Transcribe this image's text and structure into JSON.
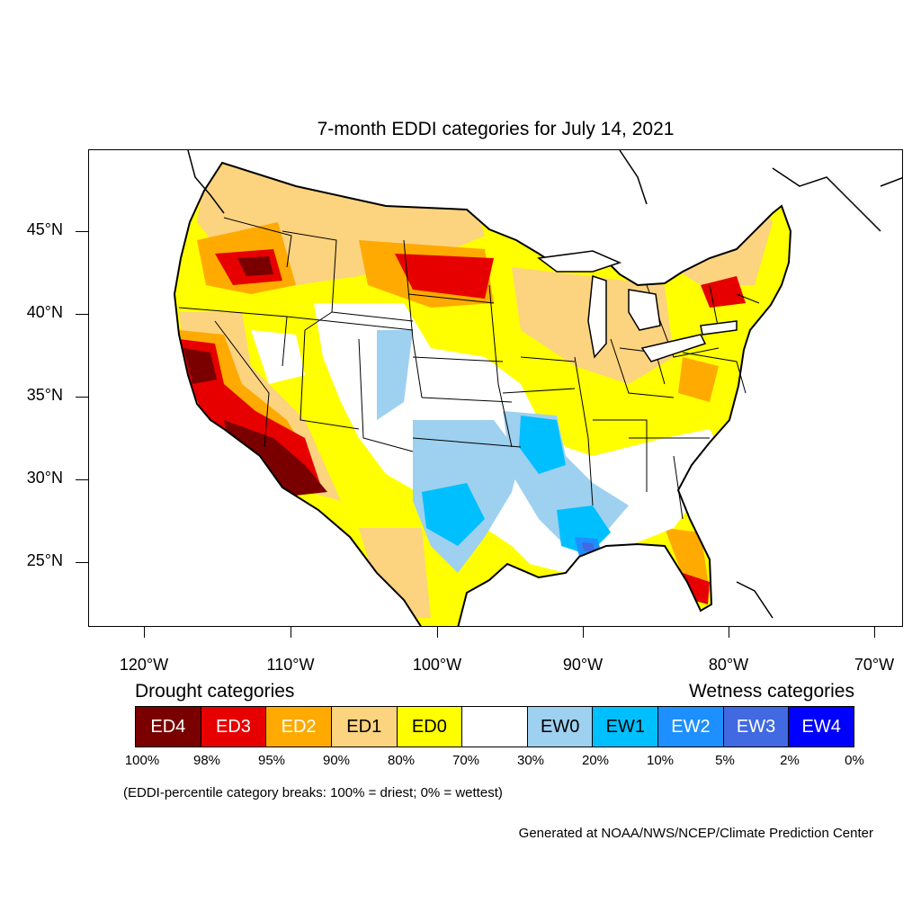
{
  "title": "7-month EDDI categories for July 14, 2021",
  "latitude_labels": [
    "45°N",
    "40°N",
    "35°N",
    "30°N",
    "25°N"
  ],
  "longitude_labels": [
    "120°W",
    "110°W",
    "100°W",
    "90°W",
    "80°W",
    "70°W"
  ],
  "legend": {
    "drought_heading": "Drought categories",
    "wetness_heading": "Wetness categories",
    "categories": [
      {
        "label": "ED4",
        "color": "#7a0000",
        "text_color": "#ffffff"
      },
      {
        "label": "ED3",
        "color": "#e60000",
        "text_color": "#ffffff"
      },
      {
        "label": "ED2",
        "color": "#ffaa00",
        "text_color": "#ffffff"
      },
      {
        "label": "ED1",
        "color": "#fcd37f",
        "text_color": "#000000"
      },
      {
        "label": "ED0",
        "color": "#ffff00",
        "text_color": "#000000"
      },
      {
        "label": "",
        "color": "#ffffff",
        "text_color": "#000000"
      },
      {
        "label": "EW0",
        "color": "#9ed0f0",
        "text_color": "#000000"
      },
      {
        "label": "EW1",
        "color": "#00bfff",
        "text_color": "#000000"
      },
      {
        "label": "EW2",
        "color": "#1e8fff",
        "text_color": "#ffffff"
      },
      {
        "label": "EW3",
        "color": "#4169e1",
        "text_color": "#ffffff"
      },
      {
        "label": "EW4",
        "color": "#0000ff",
        "text_color": "#ffffff"
      }
    ],
    "breaks": [
      "100%",
      "98%",
      "95%",
      "90%",
      "80%",
      "70%",
      "30%",
      "20%",
      "10%",
      "5%",
      "2%",
      "0%"
    ]
  },
  "note": "(EDDI-percentile category breaks: 100% = driest; 0% = wettest)",
  "credit": "Generated at NOAA/NWS/NCEP/Climate Prediction Center"
}
